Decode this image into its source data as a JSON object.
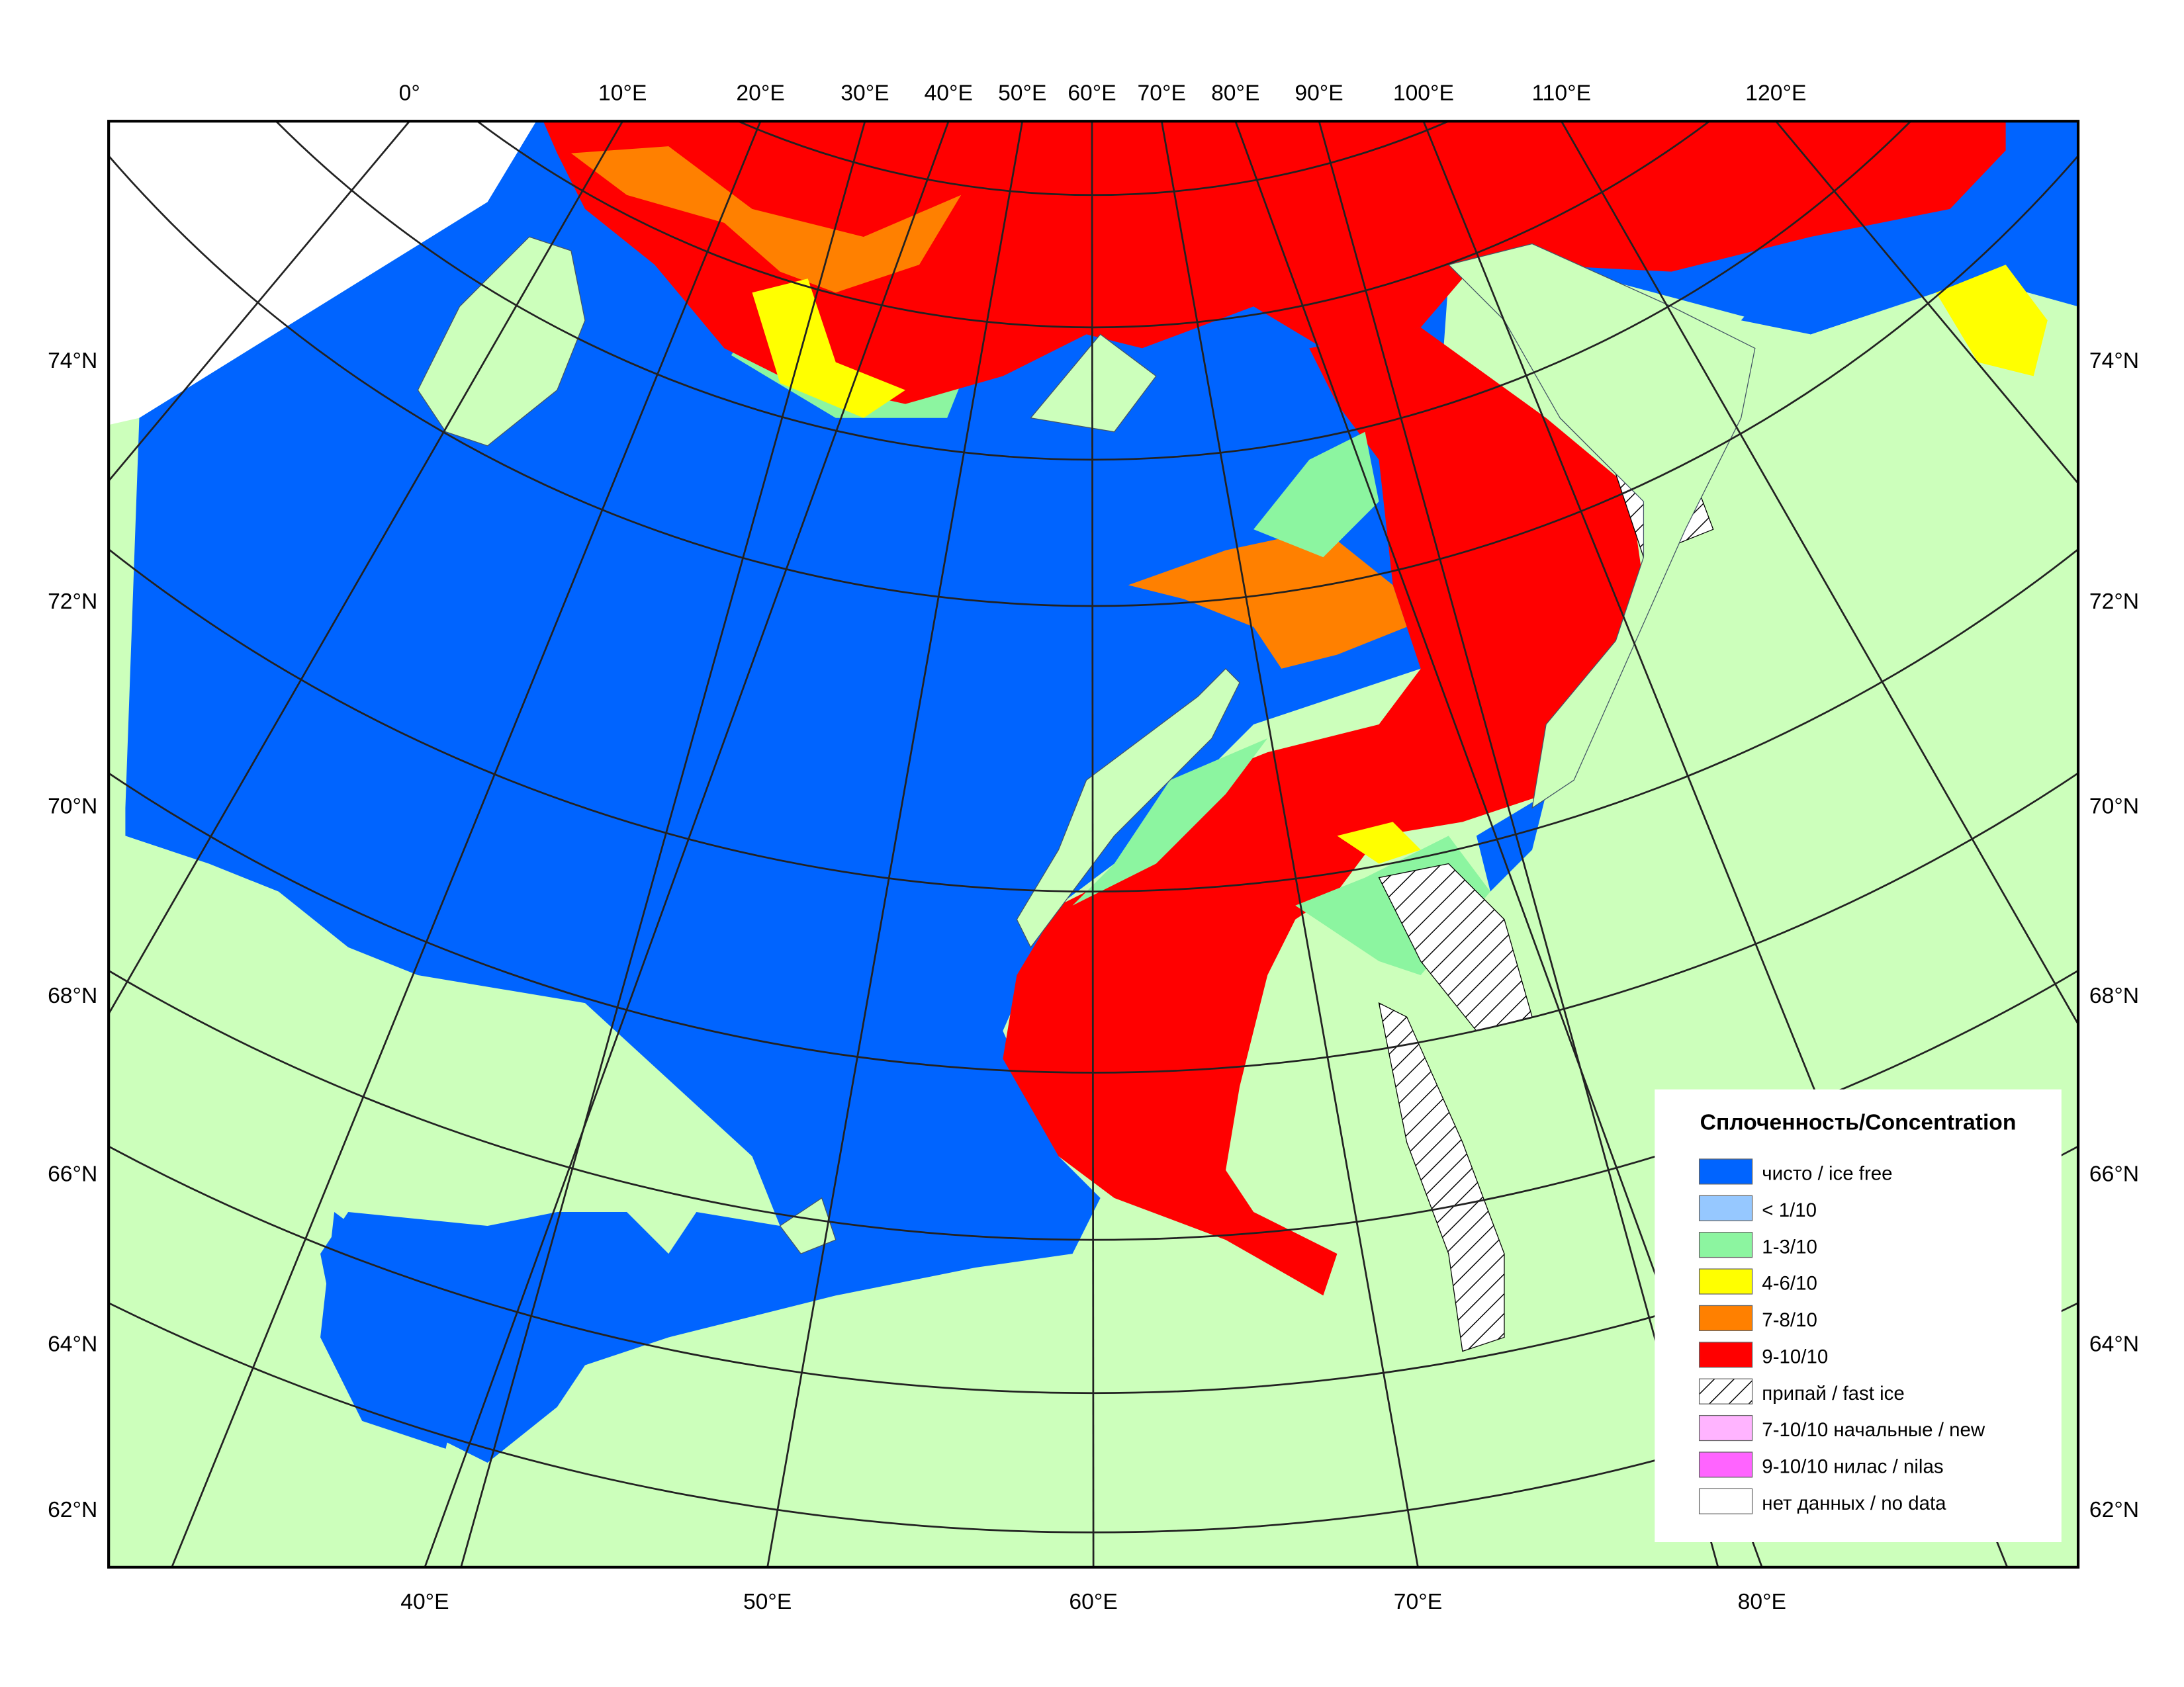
{
  "map": {
    "top_labels": [
      "0°",
      "10°E",
      "20°E",
      "30°E",
      "40°E",
      "50°E",
      "60°E",
      "70°E",
      "80°E",
      "90°E",
      "100°E",
      "110°E",
      "120°E"
    ],
    "bottom_labels": [
      "40°E",
      "50°E",
      "60°E",
      "70°E",
      "80°E"
    ],
    "left_labels": [
      "74°N",
      "72°N",
      "70°N",
      "68°N",
      "66°N",
      "64°N",
      "62°N"
    ],
    "right_labels": [
      "74°N",
      "72°N",
      "70°N",
      "68°N",
      "66°N",
      "64°N",
      "62°N"
    ]
  },
  "legend": {
    "title": "Сплоченность/Concentration",
    "items": [
      {
        "label": "чисто / ice free",
        "color": "#0064ff"
      },
      {
        "label": "< 1/10",
        "color": "#96c8ff"
      },
      {
        "label": "1-3/10",
        "color": "#8cf5a0"
      },
      {
        "label": "4-6/10",
        "color": "#ffff00"
      },
      {
        "label": "7-8/10",
        "color": "#ff8000"
      },
      {
        "label": "9-10/10",
        "color": "#ff0000"
      },
      {
        "label": "припай / fast ice",
        "color": "#ffffff",
        "pattern": "hatch"
      },
      {
        "label": "7-10/10 начальные / new",
        "color": "#ffb4ff"
      },
      {
        "label": "9-10/10 нилас / nilas",
        "color": "#ff64ff"
      },
      {
        "label": "нет данных / no data",
        "color": "#ffffff"
      }
    ]
  }
}
